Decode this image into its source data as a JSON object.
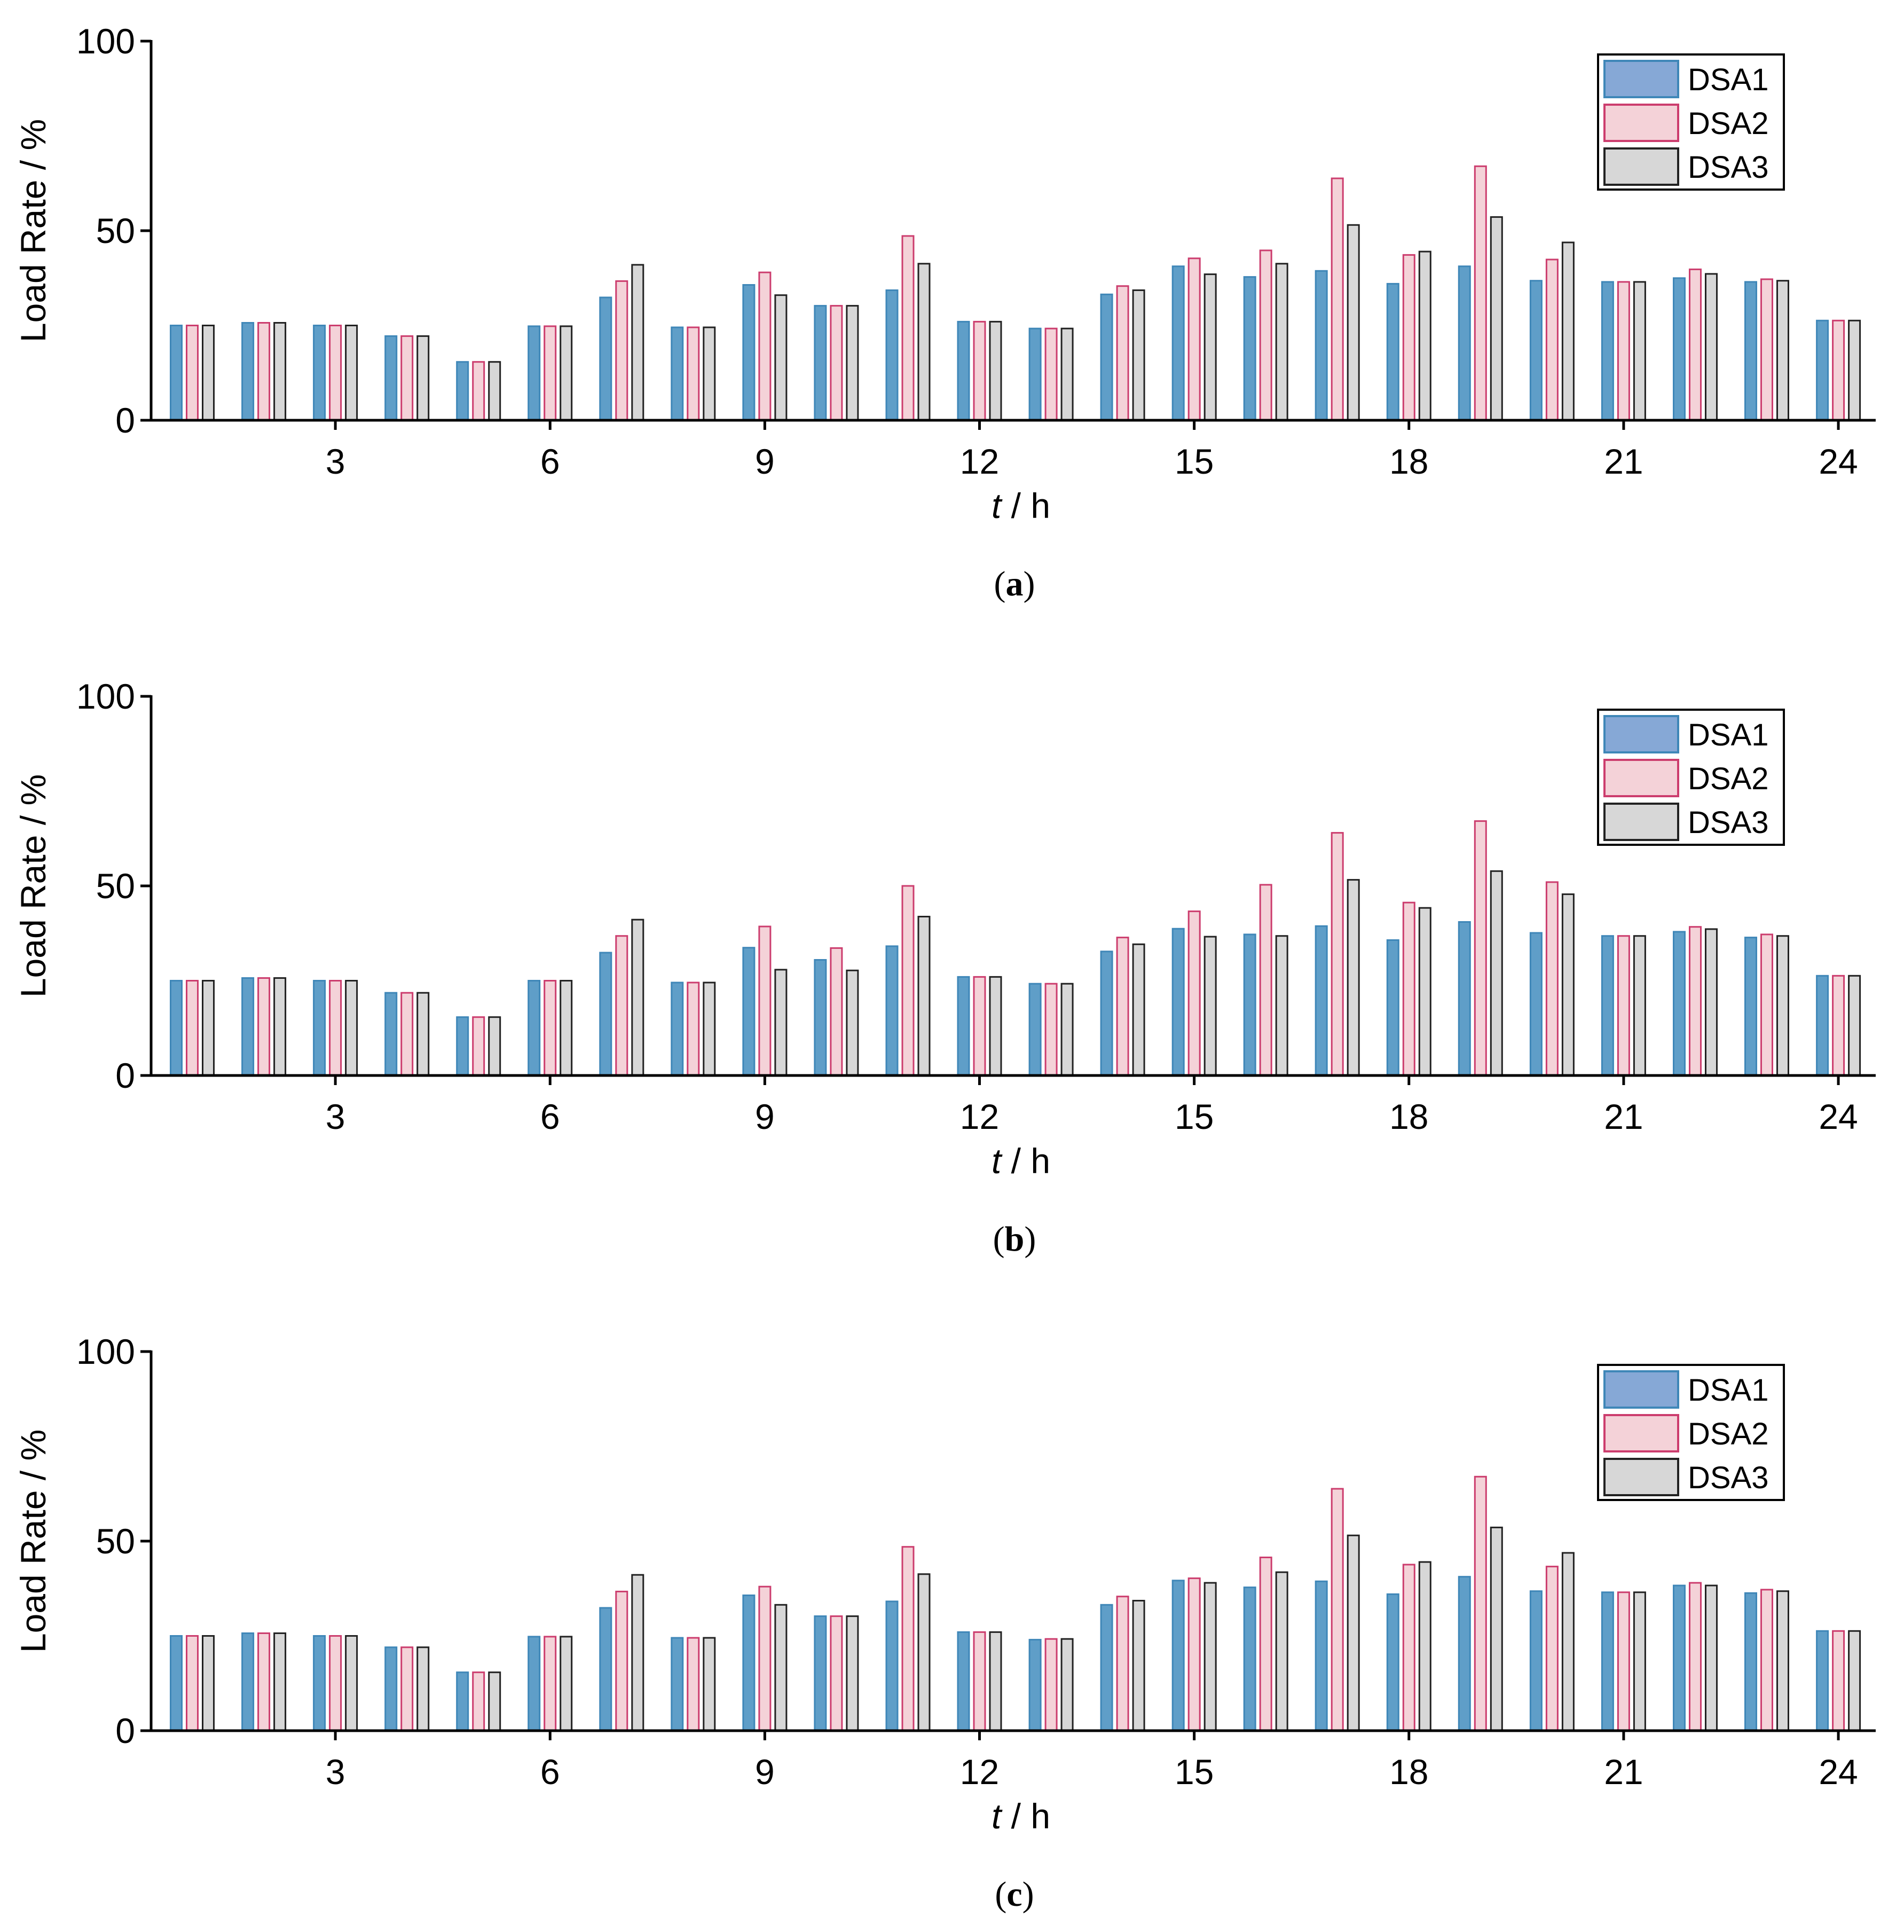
{
  "chart_data": [
    {
      "type": "bar",
      "caption": "(a)",
      "caption_letter": "a",
      "xlabel": "t / h",
      "xlabel_var": "t",
      "xlabel_unit": " / h",
      "ylabel": "Load Rate / %",
      "ylim": [
        0,
        100
      ],
      "yticks": [
        "0",
        "50",
        "100"
      ],
      "xticks": [
        "3",
        "6",
        "9",
        "12",
        "15",
        "18",
        "21",
        "24"
      ],
      "legend_position": "top-right",
      "categories": [
        1,
        2,
        3,
        4,
        5,
        6,
        7,
        8,
        9,
        10,
        11,
        12,
        13,
        14,
        15,
        16,
        17,
        18,
        19,
        20,
        21,
        22,
        23,
        24
      ],
      "series": [
        {
          "name": "DSA1",
          "values": [
            25,
            25.7,
            25,
            22.2,
            15.4,
            24.8,
            32.4,
            24.5,
            35.7,
            30.2,
            34.3,
            26,
            24.2,
            33.2,
            40.6,
            37.8,
            39.4,
            36,
            40.6,
            36.8,
            36.5,
            37.5,
            36.5,
            26.3
          ]
        },
        {
          "name": "DSA2",
          "values": [
            25,
            25.7,
            25,
            22.2,
            15.4,
            24.8,
            36.7,
            24.5,
            39,
            30.2,
            48.6,
            26,
            24.2,
            35.4,
            42.7,
            44.8,
            63.8,
            43.6,
            67,
            42.4,
            36.5,
            39.8,
            37.2,
            26.3
          ]
        },
        {
          "name": "DSA3",
          "values": [
            25,
            25.7,
            25,
            22.2,
            15.4,
            24.8,
            41,
            24.5,
            33,
            30.2,
            41.3,
            26,
            24.2,
            34.3,
            38.5,
            41.3,
            51.5,
            44.5,
            53.6,
            46.9,
            36.5,
            38.6,
            36.8,
            26.3
          ]
        }
      ]
    },
    {
      "type": "bar",
      "caption": "(b)",
      "caption_letter": "b",
      "xlabel": "t / h",
      "xlabel_var": "t",
      "xlabel_unit": " / h",
      "ylabel": "Load Rate / %",
      "ylim": [
        0,
        100
      ],
      "yticks": [
        "0",
        "50",
        "100"
      ],
      "xticks": [
        "3",
        "6",
        "9",
        "12",
        "15",
        "18",
        "21",
        "24"
      ],
      "legend_position": "top-right",
      "categories": [
        1,
        2,
        3,
        4,
        5,
        6,
        7,
        8,
        9,
        10,
        11,
        12,
        13,
        14,
        15,
        16,
        17,
        18,
        19,
        20,
        21,
        22,
        23,
        24
      ],
      "series": [
        {
          "name": "DSA1",
          "values": [
            25,
            25.7,
            25,
            21.8,
            15.4,
            25,
            32.4,
            24.5,
            33.7,
            30.5,
            34.1,
            26,
            24.2,
            32.7,
            38.7,
            37.2,
            39.4,
            35.7,
            40.5,
            37.6,
            36.8,
            37.9,
            36.4,
            26.3
          ]
        },
        {
          "name": "DSA2",
          "values": [
            25,
            25.7,
            25,
            21.8,
            15.4,
            25,
            36.8,
            24.5,
            39.3,
            33.6,
            50,
            26,
            24.2,
            36.4,
            43.3,
            50.3,
            64,
            45.6,
            67.1,
            51,
            36.8,
            39.2,
            37.2,
            26.3
          ]
        },
        {
          "name": "DSA3",
          "values": [
            25,
            25.7,
            25,
            21.8,
            15.4,
            25,
            41.1,
            24.5,
            27.9,
            27.7,
            41.9,
            26,
            24.2,
            34.6,
            36.6,
            36.8,
            51.6,
            44.2,
            53.9,
            47.8,
            36.8,
            38.6,
            36.8,
            26.3
          ]
        }
      ]
    },
    {
      "type": "bar",
      "caption": "(c)",
      "caption_letter": "c",
      "xlabel": "t / h",
      "xlabel_var": "t",
      "xlabel_unit": " / h",
      "ylabel": "Load Rate / %",
      "ylim": [
        0,
        100
      ],
      "yticks": [
        "0",
        "50",
        "100"
      ],
      "xticks": [
        "3",
        "6",
        "9",
        "12",
        "15",
        "18",
        "21",
        "24"
      ],
      "legend_position": "top-right",
      "categories": [
        1,
        2,
        3,
        4,
        5,
        6,
        7,
        8,
        9,
        10,
        11,
        12,
        13,
        14,
        15,
        16,
        17,
        18,
        19,
        20,
        21,
        22,
        23,
        24
      ],
      "series": [
        {
          "name": "DSA1",
          "values": [
            25,
            25.7,
            25,
            22,
            15.4,
            24.8,
            32.4,
            24.5,
            35.7,
            30.2,
            34.1,
            26,
            24,
            33.2,
            39.6,
            37.8,
            39.4,
            36,
            40.6,
            36.8,
            36.5,
            38.3,
            36.3,
            26.3
          ]
        },
        {
          "name": "DSA2",
          "values": [
            25,
            25.7,
            25,
            22,
            15.4,
            24.8,
            36.7,
            24.5,
            38,
            30.2,
            48.5,
            26,
            24.2,
            35.4,
            40.2,
            45.7,
            63.8,
            43.8,
            67,
            43.3,
            36.5,
            39,
            37.2,
            26.3
          ]
        },
        {
          "name": "DSA3",
          "values": [
            25,
            25.7,
            25,
            22,
            15.4,
            24.8,
            41.1,
            24.5,
            33.2,
            30.2,
            41.3,
            26,
            24.2,
            34.3,
            39,
            41.8,
            51.5,
            44.5,
            53.6,
            46.9,
            36.5,
            38.3,
            36.8,
            26.3
          ]
        }
      ]
    }
  ],
  "colors": {
    "DSA1": {
      "fill": "#5f9ec8",
      "stroke": "#3f87b8",
      "legend_fill": "#86a8d6",
      "legend_stroke": "#3f87b8"
    },
    "DSA2": {
      "fill": "#f4d2d8",
      "stroke": "#cc3d6e",
      "legend_fill": "#f4d2d8",
      "legend_stroke": "#cc3d6e"
    },
    "DSA3": {
      "fill": "#d7d7d7",
      "stroke": "#222222",
      "legend_fill": "#d7d7d7",
      "legend_stroke": "#222222"
    },
    "axis": "#000000"
  }
}
